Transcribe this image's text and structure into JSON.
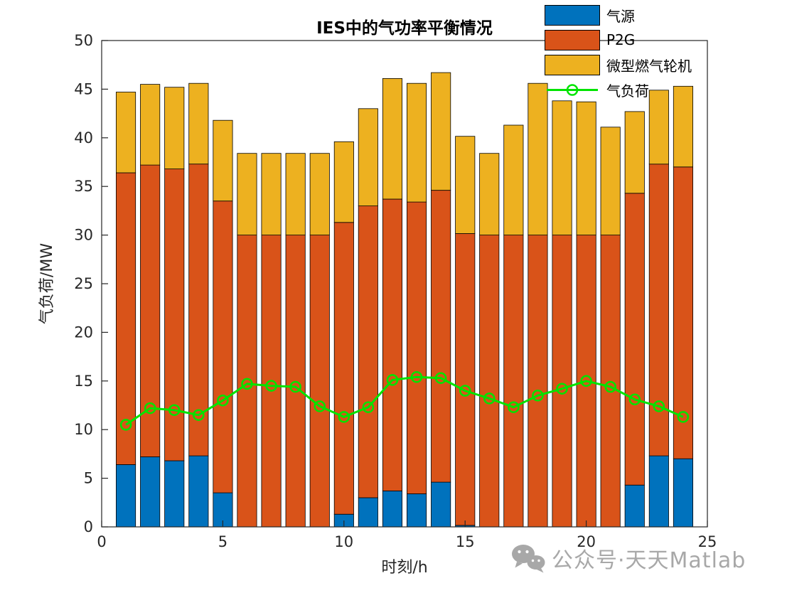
{
  "figure": {
    "background": "#ffffff"
  },
  "chart_data": {
    "type": "bar",
    "subtype": "stacked-bars-with-line-overlay",
    "title": "IES中的气功率平衡情况",
    "xlabel": "时刻/h",
    "ylabel": "气负荷/MW",
    "xlim": [
      0,
      25
    ],
    "ylim": [
      0,
      50
    ],
    "x_ticks": [
      0,
      5,
      10,
      15,
      20,
      25
    ],
    "y_ticks": [
      0,
      5,
      10,
      15,
      20,
      25,
      30,
      35,
      40,
      45,
      50
    ],
    "grid": false,
    "legend_position": "top-right",
    "axis_color": "#262626",
    "x": [
      1,
      2,
      3,
      4,
      5,
      6,
      7,
      8,
      9,
      10,
      11,
      12,
      13,
      14,
      15,
      16,
      17,
      18,
      19,
      20,
      21,
      22,
      23,
      24
    ],
    "series": [
      {
        "name": "气源",
        "type": "bar",
        "color": "#0072BD",
        "values": [
          6.4,
          7.2,
          6.8,
          7.3,
          3.5,
          0,
          0,
          0,
          0,
          1.3,
          3.0,
          3.7,
          3.4,
          4.6,
          0.15,
          0,
          0,
          0,
          0,
          0,
          0,
          4.3,
          7.3,
          7.0
        ]
      },
      {
        "name": "P2G",
        "type": "bar",
        "color": "#D95319",
        "values": [
          30,
          30,
          30,
          30,
          30,
          30,
          30,
          30,
          30,
          30,
          30,
          30,
          30,
          30,
          30,
          30,
          30,
          30,
          30,
          30,
          30,
          30,
          30,
          30
        ]
      },
      {
        "name": "微型燃气轮机",
        "type": "bar",
        "color": "#EDB120",
        "values": [
          8.3,
          8.3,
          8.4,
          8.3,
          8.3,
          8.4,
          8.4,
          8.4,
          8.4,
          8.3,
          10.0,
          12.4,
          12.2,
          12.1,
          10.0,
          8.4,
          11.3,
          15.6,
          13.8,
          13.7,
          11.1,
          8.4,
          7.6,
          8.3
        ]
      },
      {
        "name": "气负荷",
        "type": "line",
        "color": "#00E400",
        "values": [
          10.5,
          12.2,
          12.0,
          11.5,
          13.0,
          14.7,
          14.5,
          14.4,
          12.4,
          11.3,
          12.3,
          15.1,
          15.4,
          15.3,
          14.0,
          13.2,
          12.3,
          13.5,
          14.2,
          15.0,
          14.4,
          13.1,
          12.4,
          11.3
        ]
      }
    ]
  },
  "watermark": {
    "icon": "wechat-icon",
    "text": "公众号·天天Matlab",
    "color": "#a8a8a8"
  }
}
